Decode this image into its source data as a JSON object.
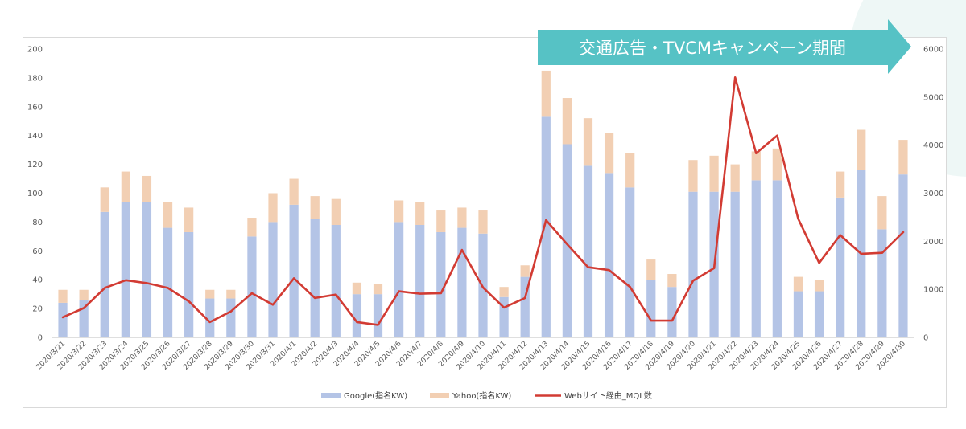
{
  "banner": {
    "text": "交通広告・TVCMキャンペーン期間"
  },
  "legend": [
    {
      "key": "google",
      "label": "Google(指名KW)",
      "color": "#b4c4e6"
    },
    {
      "key": "yahoo",
      "label": "Yahoo(指名KW)",
      "color": "#f2cfb3"
    },
    {
      "key": "mql",
      "label": "Webサイト経由_MQL数",
      "color": "#d23b33"
    }
  ],
  "chart_data": {
    "type": "bar",
    "stacked": true,
    "title": "",
    "xlabel": "",
    "ylabel": "",
    "ylim": [
      0,
      200
    ],
    "yticks": [
      0,
      20,
      40,
      60,
      80,
      100,
      120,
      140,
      160,
      180,
      200
    ],
    "y2lim": [
      0,
      6000
    ],
    "y2ticks": [
      0,
      1000,
      2000,
      3000,
      4000,
      5000,
      6000
    ],
    "grid": false,
    "legend_position": "bottom",
    "categories": [
      "2020/3/21",
      "2020/3/22",
      "2020/3/23",
      "2020/3/24",
      "2020/3/25",
      "2020/3/26",
      "2020/3/27",
      "2020/3/28",
      "2020/3/29",
      "2020/3/30",
      "2020/3/31",
      "2020/4/1",
      "2020/4/2",
      "2020/4/3",
      "2020/4/4",
      "2020/4/5",
      "2020/4/6",
      "2020/4/7",
      "2020/4/8",
      "2020/4/9",
      "2020/4/10",
      "2020/4/11",
      "2020/4/12",
      "2020/4/13",
      "2020/4/14",
      "2020/4/15",
      "2020/4/16",
      "2020/4/17",
      "2020/4/18",
      "2020/4/19",
      "2020/4/20",
      "2020/4/21",
      "2020/4/22",
      "2020/4/23",
      "2020/4/24",
      "2020/4/25",
      "2020/4/26",
      "2020/4/27",
      "2020/4/28",
      "2020/4/29",
      "2020/4/30"
    ],
    "series": [
      {
        "name": "Google(指名KW)",
        "type": "bar",
        "axis": "left",
        "color": "#b4c4e6",
        "values": [
          24,
          26,
          87,
          94,
          94,
          76,
          73,
          27,
          27,
          70,
          80,
          92,
          82,
          78,
          30,
          30,
          80,
          78,
          73,
          76,
          72,
          28,
          42,
          153,
          134,
          119,
          114,
          104,
          40,
          35,
          101,
          101,
          101,
          109,
          109,
          32,
          32,
          97,
          116,
          75,
          113
        ]
      },
      {
        "name": "Yahoo(指名KW)",
        "type": "bar",
        "axis": "left",
        "color": "#f2cfb3",
        "values": [
          9,
          7,
          17,
          21,
          18,
          18,
          17,
          6,
          6,
          13,
          20,
          18,
          16,
          18,
          8,
          7,
          15,
          16,
          15,
          14,
          16,
          7,
          8,
          32,
          32,
          33,
          28,
          24,
          14,
          9,
          22,
          25,
          19,
          20,
          22,
          10,
          8,
          18,
          28,
          23,
          24
        ]
      },
      {
        "name": "Webサイト経由_MQL数",
        "type": "line",
        "axis": "right",
        "color": "#d23b33",
        "values": [
          420,
          610,
          1030,
          1190,
          1130,
          1030,
          750,
          320,
          540,
          920,
          680,
          1230,
          820,
          890,
          320,
          260,
          960,
          910,
          920,
          1820,
          1040,
          620,
          820,
          2440,
          1940,
          1460,
          1400,
          1050,
          350,
          350,
          1180,
          1440,
          5410,
          3830,
          4200,
          2470,
          1550,
          2130,
          1740,
          1760,
          2190
        ]
      }
    ],
    "annotation": {
      "text": "交通広告・TVCMキャンペーン期間",
      "from": "2020/4/13",
      "to": "2020/4/30"
    }
  }
}
